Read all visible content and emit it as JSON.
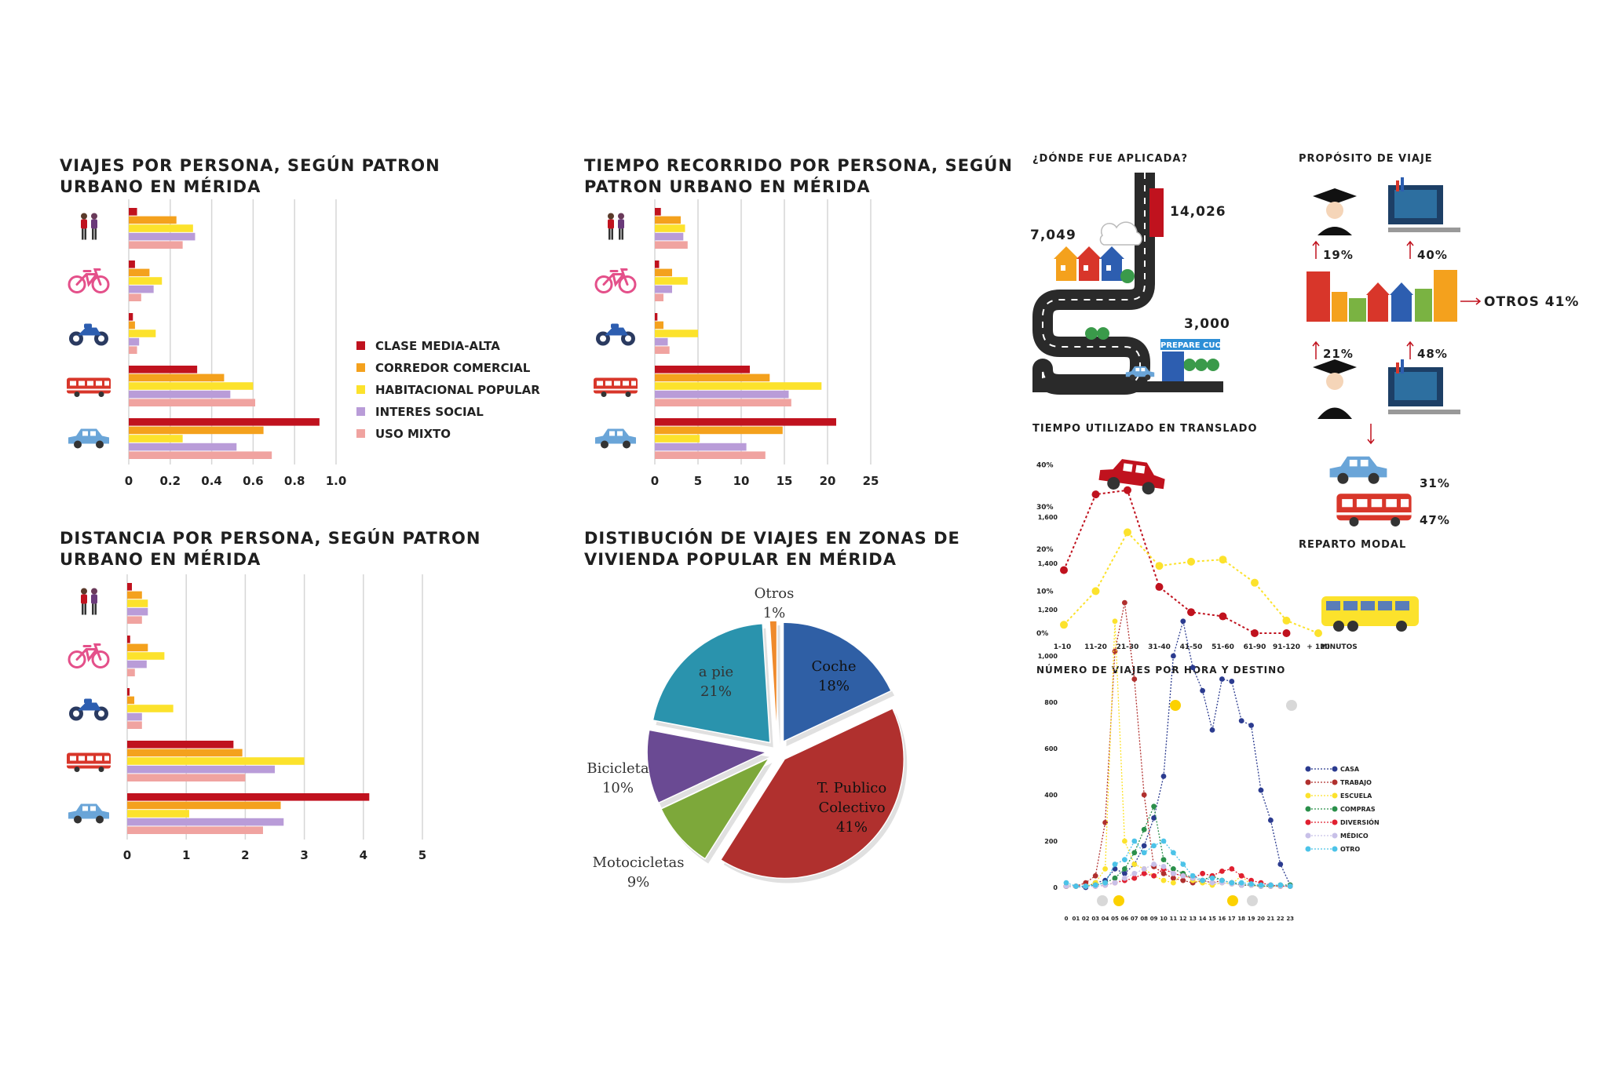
{
  "palette": {
    "clase_media_alta": "#c0121e",
    "corredor_comercial": "#f4a11d",
    "habitacional_popular": "#fce22c",
    "interes_social": "#b99cd8",
    "uso_mixto": "#f0a3a0"
  },
  "row_icons": [
    "people-icon",
    "bicycle-icon",
    "motorcycle-icon",
    "bus-icon",
    "car-icon"
  ],
  "legend": [
    "CLASE MEDIA-ALTA",
    "CORREDOR COMERCIAL",
    "HABITACIONAL POPULAR",
    "INTERES SOCIAL",
    "USO MIXTO"
  ],
  "chart_data": [
    {
      "type": "bar",
      "orientation": "horizontal",
      "title": "VIAJES POR PERSONA, SEGÚN PATRON URBANO EN MÉRIDA",
      "categories": [
        "a pie",
        "bicicleta",
        "motocicleta",
        "transporte público",
        "coche"
      ],
      "xlim": [
        0,
        1.0
      ],
      "ticks": [
        "0",
        "0.2",
        "0.4",
        "0.6",
        "0.8",
        "1.0"
      ],
      "tick_values": [
        0,
        0.2,
        0.4,
        0.6,
        0.8,
        1.0
      ],
      "series": [
        {
          "name": "CLASE MEDIA-ALTA",
          "values": [
            0.04,
            0.03,
            0.02,
            0.33,
            0.92
          ]
        },
        {
          "name": "CORREDOR COMERCIAL",
          "values": [
            0.23,
            0.1,
            0.03,
            0.46,
            0.65
          ]
        },
        {
          "name": "HABITACIONAL POPULAR",
          "values": [
            0.31,
            0.16,
            0.13,
            0.6,
            0.26
          ]
        },
        {
          "name": "INTERES SOCIAL",
          "values": [
            0.32,
            0.12,
            0.05,
            0.49,
            0.52
          ]
        },
        {
          "name": "USO MIXTO",
          "values": [
            0.26,
            0.06,
            0.04,
            0.61,
            0.69
          ]
        }
      ]
    },
    {
      "type": "bar",
      "orientation": "horizontal",
      "title": "TIEMPO RECORRIDO POR PERSONA, SEGÚN PATRON URBANO EN MÉRIDA",
      "categories": [
        "a pie",
        "bicicleta",
        "motocicleta",
        "transporte público",
        "coche"
      ],
      "xlim": [
        0,
        25
      ],
      "ticks": [
        "0",
        "5",
        "10",
        "15",
        "20",
        "25"
      ],
      "tick_values": [
        0,
        5,
        10,
        15,
        20,
        25
      ],
      "series": [
        {
          "name": "CLASE MEDIA-ALTA",
          "values": [
            0.7,
            0.5,
            0.3,
            11,
            21
          ]
        },
        {
          "name": "CORREDOR COMERCIAL",
          "values": [
            3,
            2,
            1,
            13.3,
            14.8
          ]
        },
        {
          "name": "HABITACIONAL POPULAR",
          "values": [
            3.5,
            3.8,
            5,
            19.3,
            5.2
          ]
        },
        {
          "name": "INTERES SOCIAL",
          "values": [
            3.3,
            2,
            1.5,
            15.5,
            10.6
          ]
        },
        {
          "name": "USO MIXTO",
          "values": [
            3.8,
            1,
            1.7,
            15.8,
            12.8
          ]
        }
      ]
    },
    {
      "type": "bar",
      "orientation": "horizontal",
      "title": "DISTANCIA POR PERSONA, SEGÚN PATRON URBANO EN MÉRIDA",
      "categories": [
        "a pie",
        "bicicleta",
        "motocicleta",
        "transporte público",
        "coche"
      ],
      "xlim": [
        0,
        5
      ],
      "ticks": [
        "0",
        "1",
        "2",
        "3",
        "4",
        "5"
      ],
      "tick_values": [
        0,
        1,
        2,
        3,
        4,
        5
      ],
      "series": [
        {
          "name": "CLASE MEDIA-ALTA",
          "values": [
            0.08,
            0.05,
            0.04,
            1.8,
            4.1
          ]
        },
        {
          "name": "CORREDOR COMERCIAL",
          "values": [
            0.25,
            0.35,
            0.12,
            1.95,
            2.6
          ]
        },
        {
          "name": "HABITACIONAL POPULAR",
          "values": [
            0.35,
            0.63,
            0.78,
            3.0,
            1.05
          ]
        },
        {
          "name": "INTERES SOCIAL",
          "values": [
            0.35,
            0.33,
            0.25,
            2.5,
            2.65
          ]
        },
        {
          "name": "USO MIXTO",
          "values": [
            0.25,
            0.13,
            0.25,
            2.0,
            2.3
          ]
        }
      ]
    },
    {
      "type": "pie",
      "title": "DISTIBUCIÓN DE VIAJES EN ZONAS DE VIVIENDA POPULAR EN MÉRIDA",
      "slices": [
        {
          "label": "Coche",
          "value": 18,
          "pct": "18%",
          "color": "#2f5fa5"
        },
        {
          "label": "T. Publico Colectivo",
          "value": 41,
          "pct": "41%",
          "color": "#b0302e"
        },
        {
          "label": "Motocicletas",
          "value": 9,
          "pct": "9%",
          "color": "#7da83a"
        },
        {
          "label": "Bicicleta",
          "value": 10,
          "pct": "10%",
          "color": "#6a4a93"
        },
        {
          "label": "a pie",
          "value": 21,
          "pct": "21%",
          "color": "#2a93ad"
        },
        {
          "label": "Otros",
          "value": 1,
          "pct": "1%",
          "color": "#ef8a2c"
        }
      ]
    },
    {
      "type": "line",
      "title": "TIEMPO UTILIZADO EN TRANSLADO",
      "categories": [
        "1-10",
        "11-20",
        "21-30",
        "31-40",
        "41-50",
        "51-60",
        "61-90",
        "91-120",
        "+ 120"
      ],
      "xlabel": "MINUTOS",
      "ylim": [
        0,
        40
      ],
      "yticks": [
        "0%",
        "10%",
        "20%",
        "30%",
        "40%"
      ],
      "series": [
        {
          "color": "#c0121e",
          "values": [
            15,
            33,
            34,
            11,
            5,
            4,
            0,
            0,
            null
          ]
        },
        {
          "color": "#fce22c",
          "values": [
            2,
            10,
            24,
            16,
            17,
            17.5,
            12,
            3,
            0
          ]
        }
      ]
    },
    {
      "type": "line",
      "title": "NÚMERO DE VIAJES POR HORA Y DESTINO",
      "categories": [
        "0",
        "01",
        "02",
        "03",
        "04",
        "05",
        "06",
        "07",
        "08",
        "09",
        "10",
        "11",
        "12",
        "13",
        "14",
        "15",
        "16",
        "17",
        "18",
        "19",
        "20",
        "21",
        "22",
        "23"
      ],
      "ylim": [
        0,
        1600
      ],
      "yticks": [
        "0",
        "200",
        "400",
        "600",
        "800",
        "1,000",
        "1,200",
        "1,400",
        "1,600"
      ],
      "series": [
        {
          "name": "CASA",
          "color": "#2b3b8f",
          "values": [
            5,
            5,
            0,
            20,
            30,
            80,
            60,
            100,
            180,
            300,
            480,
            1000,
            1150,
            950,
            850,
            680,
            900,
            890,
            720,
            700,
            420,
            290,
            100,
            10
          ]
        },
        {
          "name": "TRABAJO",
          "color": "#b0302e",
          "values": [
            5,
            5,
            20,
            50,
            280,
            1020,
            1230,
            900,
            400,
            90,
            60,
            40,
            30,
            20,
            30,
            20,
            30,
            20,
            10,
            10,
            5,
            5,
            5,
            5
          ]
        },
        {
          "name": "ESCUELA",
          "color": "#fce22c",
          "values": [
            5,
            5,
            5,
            20,
            80,
            1150,
            200,
            100,
            80,
            50,
            30,
            20,
            60,
            30,
            20,
            10,
            20,
            15,
            50,
            10,
            5,
            5,
            5,
            5
          ]
        },
        {
          "name": "COMPRAS",
          "color": "#2a8f4a",
          "values": [
            5,
            5,
            5,
            10,
            20,
            40,
            80,
            150,
            250,
            350,
            120,
            80,
            60,
            40,
            30,
            50,
            30,
            20,
            10,
            10,
            5,
            5,
            10,
            10
          ]
        },
        {
          "name": "DIVERSIÓN",
          "color": "#e02030",
          "values": [
            5,
            5,
            5,
            5,
            10,
            20,
            30,
            40,
            60,
            50,
            80,
            60,
            50,
            40,
            60,
            50,
            70,
            80,
            50,
            30,
            20,
            10,
            5,
            5
          ]
        },
        {
          "name": "MÉDICO",
          "color": "#c8c0e8",
          "values": [
            5,
            5,
            5,
            5,
            10,
            20,
            40,
            60,
            80,
            100,
            90,
            60,
            50,
            40,
            30,
            20,
            20,
            15,
            10,
            10,
            5,
            5,
            5,
            5
          ]
        },
        {
          "name": "OTRO",
          "color": "#4cc3e8",
          "values": [
            20,
            5,
            5,
            10,
            20,
            100,
            120,
            200,
            150,
            180,
            200,
            150,
            100,
            50,
            30,
            40,
            30,
            20,
            20,
            15,
            10,
            10,
            10,
            5
          ]
        }
      ]
    }
  ],
  "infographic": {
    "donde_title": "¿DÓNDE FUE APLICADA?",
    "n1": "7,049",
    "n2": "14,026",
    "n3": "3,000",
    "sign": "PREPARE CUOTA",
    "proposito_title": "PROPÓSITO DE VIAJE",
    "p19": "19%",
    "p40": "40%",
    "otros": "OTROS 41%",
    "p21": "21%",
    "p48": "48%",
    "car_pct": "31%",
    "bus_pct": "47%",
    "reparto": "REPARTO MODAL"
  }
}
